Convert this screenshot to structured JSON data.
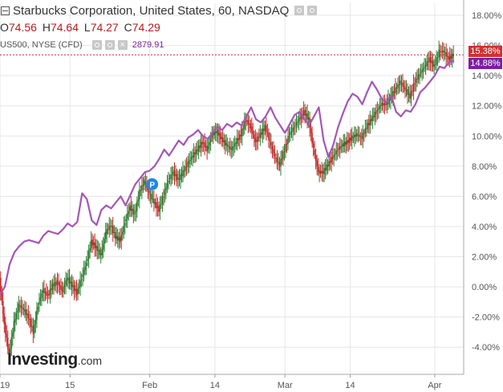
{
  "header": {
    "title": "Starbucks Corporation, United States, 60, NASDAQ",
    "ohlc": [
      {
        "label": "O",
        "value": "74.56"
      },
      {
        "label": "H",
        "value": "74.64"
      },
      {
        "label": "L",
        "value": "74.27"
      },
      {
        "label": "C",
        "value": "74.29"
      }
    ],
    "compare_symbol": "US500, NYSE (CFD)",
    "compare_value": "2879.91",
    "icons": [
      "settings-icon",
      "settings-icon",
      "close-icon"
    ]
  },
  "logo": {
    "main": "Investing",
    "suffix": ".com"
  },
  "price_tags": {
    "primary": "15.38%",
    "compare": "14.88%"
  },
  "colors": {
    "up": "#2e7d32",
    "down": "#c62828",
    "compare_line": "#a456b5",
    "price_line": "#d32f2f",
    "grid": "#e6e6e6",
    "tag_primary": "#d32f2f",
    "tag_compare": "#7b1fa2"
  },
  "chart_data": {
    "type": "line",
    "y_axis_labels": [
      "18.00%",
      "16.00%",
      "14.00%",
      "12.00%",
      "10.00%",
      "8.00%",
      "6.00%",
      "4.00%",
      "2.00%",
      "0.00%",
      "-2.00%",
      "-4.00%"
    ],
    "ylim": [
      -5.8,
      18.8
    ],
    "x_ticks": [
      {
        "label": "19",
        "x": 0
      },
      {
        "label": "15",
        "x": 14.5
      },
      {
        "label": "Feb",
        "x": 31
      },
      {
        "label": "14",
        "x": 44.5
      },
      {
        "label": "Mar",
        "x": 59
      },
      {
        "label": "14",
        "x": 72.5
      },
      {
        "label": "Apr",
        "x": 90
      }
    ],
    "xlim": [
      0,
      96
    ],
    "grid": true,
    "marker": {
      "label": "P",
      "x": 31.5,
      "y": 6.8
    },
    "series": [
      {
        "role": "compare",
        "points": [
          [
            0,
            -0.5
          ],
          [
            1,
            0
          ],
          [
            2,
            1.5
          ],
          [
            3,
            2.3
          ],
          [
            4,
            2.7
          ],
          [
            5,
            3
          ],
          [
            6,
            3.1
          ],
          [
            7,
            3
          ],
          [
            8,
            2.9
          ],
          [
            9,
            3.4
          ],
          [
            10,
            3.7
          ],
          [
            11,
            3.6
          ],
          [
            12,
            3.5
          ],
          [
            13,
            3.8
          ],
          [
            14,
            4.2
          ],
          [
            15,
            4
          ],
          [
            16,
            4.3
          ],
          [
            17,
            6.2
          ],
          [
            18,
            5.8
          ],
          [
            19,
            4.4
          ],
          [
            20,
            4.1
          ],
          [
            21,
            5.1
          ],
          [
            22,
            5.4
          ],
          [
            23,
            5.2
          ],
          [
            24,
            5.6
          ],
          [
            25,
            6
          ],
          [
            26,
            5.4
          ],
          [
            27,
            6.1
          ],
          [
            28,
            6.8
          ],
          [
            29,
            7.2
          ],
          [
            30,
            7.6
          ],
          [
            31,
            7.7
          ],
          [
            32,
            8
          ],
          [
            33,
            8.5
          ],
          [
            34,
            9.1
          ],
          [
            35,
            8.7
          ],
          [
            36,
            9.2
          ],
          [
            37,
            9.7
          ],
          [
            38,
            9.4
          ],
          [
            39,
            9.9
          ],
          [
            40,
            10.1
          ],
          [
            41,
            10.4
          ],
          [
            42,
            10
          ],
          [
            43,
            9.8
          ],
          [
            44,
            10.2
          ],
          [
            45,
            10.6
          ],
          [
            46,
            10.4
          ],
          [
            47,
            10.8
          ],
          [
            48,
            10.6
          ],
          [
            49,
            10.9
          ],
          [
            50,
            10.7
          ],
          [
            51,
            11.3
          ],
          [
            52,
            11.9
          ],
          [
            53,
            11.1
          ],
          [
            54,
            10.9
          ],
          [
            55,
            11.3
          ],
          [
            56,
            11.9
          ],
          [
            57,
            11.2
          ],
          [
            58,
            10.7
          ],
          [
            59,
            10.2
          ],
          [
            60,
            10.8
          ],
          [
            61,
            11.4
          ],
          [
            62,
            11.6
          ],
          [
            63,
            11.1
          ],
          [
            64,
            10.7
          ],
          [
            65,
            11.3
          ],
          [
            66,
            11.9
          ],
          [
            67,
            9.7
          ],
          [
            68,
            8.6
          ],
          [
            69,
            9.4
          ],
          [
            70,
            10.6
          ],
          [
            71,
            11.5
          ],
          [
            72,
            12.3
          ],
          [
            73,
            12.8
          ],
          [
            74,
            12.6
          ],
          [
            75,
            12.1
          ],
          [
            76,
            12.9
          ],
          [
            77,
            13.6
          ],
          [
            78,
            13.1
          ],
          [
            79,
            12.5
          ],
          [
            80,
            12.2
          ],
          [
            81,
            12.7
          ],
          [
            82,
            11.6
          ],
          [
            83,
            11.3
          ],
          [
            84,
            11.7
          ],
          [
            85,
            11.6
          ],
          [
            86,
            12.1
          ],
          [
            87,
            12.9
          ],
          [
            88,
            13.2
          ],
          [
            89,
            13.6
          ],
          [
            90,
            14
          ],
          [
            91,
            14.6
          ],
          [
            92,
            14.5
          ],
          [
            93,
            14.9
          ],
          [
            94,
            15
          ]
        ]
      },
      {
        "role": "primary",
        "points": [
          [
            0,
            0.5
          ],
          [
            1,
            -2.5
          ],
          [
            2,
            -4.5
          ],
          [
            3,
            -2.4
          ],
          [
            4,
            -1.2
          ],
          [
            5,
            -1.5
          ],
          [
            6,
            -2
          ],
          [
            7,
            -3
          ],
          [
            8,
            -1.2
          ],
          [
            9,
            -0.2
          ],
          [
            10,
            -0.6
          ],
          [
            11,
            0.1
          ],
          [
            12,
            0.3
          ],
          [
            13,
            -0.3
          ],
          [
            14,
            0.6
          ],
          [
            15,
            0.1
          ],
          [
            16,
            -0.4
          ],
          [
            17,
            0.6
          ],
          [
            18,
            1.6
          ],
          [
            19,
            3
          ],
          [
            20,
            2.6
          ],
          [
            21,
            2.1
          ],
          [
            22,
            3.6
          ],
          [
            23,
            4.1
          ],
          [
            24,
            3.3
          ],
          [
            25,
            3.1
          ],
          [
            26,
            4.3
          ],
          [
            27,
            5.3
          ],
          [
            28,
            4.8
          ],
          [
            29,
            6.3
          ],
          [
            30,
            7
          ],
          [
            31,
            6.2
          ],
          [
            32,
            5.6
          ],
          [
            33,
            5.1
          ],
          [
            34,
            6.1
          ],
          [
            35,
            7.1
          ],
          [
            36,
            7.6
          ],
          [
            37,
            7.1
          ],
          [
            38,
            7.6
          ],
          [
            39,
            8.2
          ],
          [
            40,
            8.7
          ],
          [
            41,
            9.1
          ],
          [
            42,
            9.6
          ],
          [
            43,
            9.1
          ],
          [
            44,
            10.1
          ],
          [
            45,
            10.3
          ],
          [
            46,
            9.8
          ],
          [
            47,
            9.4
          ],
          [
            48,
            9.1
          ],
          [
            49,
            9.6
          ],
          [
            50,
            10.1
          ],
          [
            51,
            11.1
          ],
          [
            52,
            10.6
          ],
          [
            53,
            9.6
          ],
          [
            54,
            10.1
          ],
          [
            55,
            10.6
          ],
          [
            56,
            9.6
          ],
          [
            57,
            8.6
          ],
          [
            58,
            8.1
          ],
          [
            59,
            9.1
          ],
          [
            60,
            10.1
          ],
          [
            61,
            10.6
          ],
          [
            62,
            11.1
          ],
          [
            63,
            11.6
          ],
          [
            64,
            11.1
          ],
          [
            65,
            9.1
          ],
          [
            66,
            7.6
          ],
          [
            67,
            7.6
          ],
          [
            68,
            8.1
          ],
          [
            69,
            8.6
          ],
          [
            70,
            9.1
          ],
          [
            71,
            9.4
          ],
          [
            72,
            9.6
          ],
          [
            73,
            9.9
          ],
          [
            74,
            10.1
          ],
          [
            75,
            9.9
          ],
          [
            76,
            10.6
          ],
          [
            77,
            11.1
          ],
          [
            78,
            11.6
          ],
          [
            79,
            12.1
          ],
          [
            80,
            12.1
          ],
          [
            81,
            12.6
          ],
          [
            82,
            13.1
          ],
          [
            83,
            13.6
          ],
          [
            84,
            13.1
          ],
          [
            85,
            12.6
          ],
          [
            86,
            13.6
          ],
          [
            87,
            14.1
          ],
          [
            88,
            14.6
          ],
          [
            89,
            15.1
          ],
          [
            90,
            14.6
          ],
          [
            91,
            15.6
          ],
          [
            92,
            15.6
          ],
          [
            93,
            15.1
          ],
          [
            94,
            15.4
          ]
        ]
      }
    ],
    "last_values": {
      "primary": 15.38,
      "compare": 14.88
    }
  }
}
